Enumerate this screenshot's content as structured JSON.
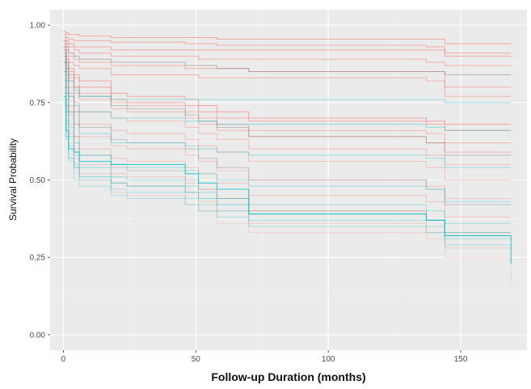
{
  "chart_data": {
    "type": "line",
    "title": "",
    "xlabel": "Follow-up Duration (months)",
    "ylabel": "Survival Probability",
    "xlim": [
      -5,
      175
    ],
    "ylim": [
      -0.05,
      1.05
    ],
    "x_ticks": [
      0,
      50,
      100,
      150
    ],
    "x_tick_labels": [
      "0",
      "50",
      "100",
      "150"
    ],
    "y_ticks": [
      0.0,
      0.25,
      0.5,
      0.75,
      1.0
    ],
    "y_tick_labels": [
      "0.00",
      "0.25",
      "0.50",
      "0.75",
      "1.00"
    ],
    "grid": true,
    "background": "#ebebeb",
    "step_times": [
      0,
      1,
      2,
      4,
      6,
      18,
      24,
      46,
      51,
      58,
      70,
      137,
      144,
      169
    ],
    "series": [
      {
        "color": "#f8766d",
        "opacity": 0.55,
        "values": [
          0.98,
          0.975,
          0.97,
          0.97,
          0.965,
          0.96,
          0.96,
          0.96,
          0.96,
          0.955,
          0.955,
          0.955,
          0.94,
          0.94
        ]
      },
      {
        "color": "#f8766d",
        "opacity": 0.5,
        "values": [
          0.97,
          0.96,
          0.955,
          0.95,
          0.95,
          0.945,
          0.945,
          0.94,
          0.94,
          0.935,
          0.935,
          0.93,
          0.91,
          0.91
        ]
      },
      {
        "color": "#f8766d",
        "opacity": 0.5,
        "values": [
          0.96,
          0.95,
          0.94,
          0.93,
          0.93,
          0.92,
          0.92,
          0.92,
          0.92,
          0.92,
          0.92,
          0.92,
          0.9,
          0.9
        ]
      },
      {
        "color": "#f8766d",
        "opacity": 0.45,
        "values": [
          0.95,
          0.94,
          0.93,
          0.92,
          0.91,
          0.9,
          0.9,
          0.9,
          0.89,
          0.89,
          0.89,
          0.88,
          0.87,
          0.87
        ]
      },
      {
        "color": "#f8766d",
        "opacity": 0.45,
        "values": [
          0.94,
          0.92,
          0.9,
          0.89,
          0.88,
          0.87,
          0.87,
          0.86,
          0.86,
          0.86,
          0.85,
          0.85,
          0.8,
          0.8
        ]
      },
      {
        "color": "#f8766d",
        "opacity": 0.45,
        "values": [
          0.93,
          0.9,
          0.88,
          0.87,
          0.86,
          0.84,
          0.84,
          0.84,
          0.83,
          0.83,
          0.83,
          0.82,
          0.77,
          0.77
        ]
      },
      {
        "color": "#f8766d",
        "opacity": 0.55,
        "values": [
          0.93,
          0.89,
          0.86,
          0.84,
          0.82,
          0.78,
          0.77,
          0.76,
          0.74,
          0.72,
          0.7,
          0.69,
          0.68,
          0.68
        ]
      },
      {
        "color": "#f8766d",
        "opacity": 0.5,
        "values": [
          0.92,
          0.88,
          0.85,
          0.83,
          0.8,
          0.76,
          0.75,
          0.74,
          0.72,
          0.7,
          0.69,
          0.68,
          0.66,
          0.66
        ]
      },
      {
        "color": "#f8766d",
        "opacity": 0.4,
        "values": [
          0.91,
          0.87,
          0.83,
          0.8,
          0.78,
          0.75,
          0.74,
          0.72,
          0.7,
          0.68,
          0.66,
          0.65,
          0.62,
          0.62
        ]
      },
      {
        "color": "#f8766d",
        "opacity": 0.4,
        "values": [
          0.9,
          0.86,
          0.82,
          0.78,
          0.76,
          0.73,
          0.72,
          0.7,
          0.68,
          0.66,
          0.64,
          0.62,
          0.59,
          0.59
        ]
      },
      {
        "color": "#f8766d",
        "opacity": 0.35,
        "values": [
          0.89,
          0.85,
          0.8,
          0.75,
          0.72,
          0.7,
          0.69,
          0.67,
          0.65,
          0.63,
          0.6,
          0.58,
          0.55,
          0.55
        ]
      },
      {
        "color": "#f8766d",
        "opacity": 0.35,
        "values": [
          0.88,
          0.82,
          0.77,
          0.72,
          0.68,
          0.66,
          0.65,
          0.63,
          0.61,
          0.59,
          0.56,
          0.54,
          0.5,
          0.5
        ]
      },
      {
        "color": "#f8766d",
        "opacity": 0.3,
        "values": [
          0.87,
          0.8,
          0.74,
          0.68,
          0.64,
          0.61,
          0.6,
          0.58,
          0.56,
          0.53,
          0.5,
          0.48,
          0.44,
          0.44
        ]
      },
      {
        "color": "#f8766d",
        "opacity": 0.3,
        "values": [
          0.86,
          0.78,
          0.71,
          0.64,
          0.6,
          0.57,
          0.56,
          0.54,
          0.52,
          0.49,
          0.45,
          0.43,
          0.38,
          0.38
        ]
      },
      {
        "color": "#f8766d",
        "opacity": 0.25,
        "values": [
          0.85,
          0.76,
          0.68,
          0.6,
          0.55,
          0.52,
          0.51,
          0.49,
          0.47,
          0.44,
          0.4,
          0.37,
          0.33,
          0.33
        ]
      },
      {
        "color": "#f8766d",
        "opacity": 0.25,
        "values": [
          0.84,
          0.74,
          0.65,
          0.57,
          0.52,
          0.49,
          0.48,
          0.46,
          0.43,
          0.4,
          0.36,
          0.33,
          0.28,
          0.28
        ]
      },
      {
        "color": "#f8766d",
        "opacity": 0.2,
        "values": [
          0.83,
          0.72,
          0.62,
          0.54,
          0.5,
          0.46,
          0.45,
          0.42,
          0.4,
          0.36,
          0.33,
          0.31,
          0.25,
          0.17
        ]
      },
      {
        "color": "#7f7f7f",
        "opacity": 0.45,
        "values": [
          0.95,
          0.93,
          0.91,
          0.9,
          0.89,
          0.88,
          0.88,
          0.87,
          0.87,
          0.86,
          0.85,
          0.85,
          0.84,
          0.84
        ]
      },
      {
        "color": "#7f7f7f",
        "opacity": 0.4,
        "values": [
          0.92,
          0.88,
          0.84,
          0.8,
          0.77,
          0.74,
          0.73,
          0.71,
          0.69,
          0.67,
          0.64,
          0.62,
          0.58,
          0.58
        ]
      },
      {
        "color": "#7f7f7f",
        "opacity": 0.35,
        "values": [
          0.9,
          0.84,
          0.78,
          0.72,
          0.67,
          0.63,
          0.62,
          0.6,
          0.57,
          0.54,
          0.5,
          0.47,
          0.42,
          0.42
        ]
      },
      {
        "color": "#7f7f7f",
        "opacity": 0.3,
        "values": [
          0.88,
          0.8,
          0.72,
          0.64,
          0.58,
          0.54,
          0.53,
          0.5,
          0.47,
          0.44,
          0.4,
          0.37,
          0.32,
          0.32
        ]
      },
      {
        "color": "#00bfc4",
        "opacity": 0.35,
        "values": [
          0.91,
          0.86,
          0.82,
          0.79,
          0.77,
          0.76,
          0.76,
          0.76,
          0.76,
          0.76,
          0.76,
          0.76,
          0.75,
          0.75
        ]
      },
      {
        "color": "#00bfc4",
        "opacity": 0.35,
        "values": [
          0.88,
          0.82,
          0.77,
          0.74,
          0.72,
          0.7,
          0.7,
          0.69,
          0.69,
          0.68,
          0.68,
          0.67,
          0.66,
          0.66
        ]
      },
      {
        "color": "#00bfc4",
        "opacity": 0.3,
        "values": [
          0.85,
          0.78,
          0.72,
          0.68,
          0.65,
          0.62,
          0.62,
          0.61,
          0.6,
          0.59,
          0.58,
          0.57,
          0.54,
          0.54
        ]
      },
      {
        "color": "#00bfc4",
        "opacity": 0.3,
        "values": [
          0.82,
          0.74,
          0.67,
          0.62,
          0.58,
          0.55,
          0.54,
          0.53,
          0.52,
          0.5,
          0.48,
          0.47,
          0.43,
          0.43
        ]
      },
      {
        "color": "#00bfc4",
        "opacity": 0.3,
        "values": [
          0.8,
          0.72,
          0.64,
          0.58,
          0.54,
          0.51,
          0.5,
          0.48,
          0.46,
          0.44,
          0.42,
          0.4,
          0.36,
          0.36
        ]
      },
      {
        "color": "#00bfc4",
        "opacity": 0.25,
        "values": [
          0.78,
          0.69,
          0.61,
          0.55,
          0.5,
          0.47,
          0.46,
          0.44,
          0.42,
          0.4,
          0.37,
          0.35,
          0.31,
          0.31
        ]
      },
      {
        "color": "#00bfc4",
        "opacity": 0.75,
        "values": [
          0.77,
          0.66,
          0.6,
          0.59,
          0.56,
          0.55,
          0.55,
          0.52,
          0.49,
          0.47,
          0.39,
          0.37,
          0.32,
          0.23
        ]
      },
      {
        "color": "#00bfc4",
        "opacity": 0.4,
        "values": [
          0.76,
          0.64,
          0.57,
          0.54,
          0.51,
          0.49,
          0.48,
          0.46,
          0.44,
          0.42,
          0.39,
          0.37,
          0.33,
          0.33
        ]
      },
      {
        "color": "#00bfc4",
        "opacity": 0.25,
        "values": [
          0.75,
          0.63,
          0.56,
          0.5,
          0.48,
          0.45,
          0.44,
          0.42,
          0.4,
          0.38,
          0.35,
          0.33,
          0.29,
          0.29
        ]
      }
    ]
  }
}
